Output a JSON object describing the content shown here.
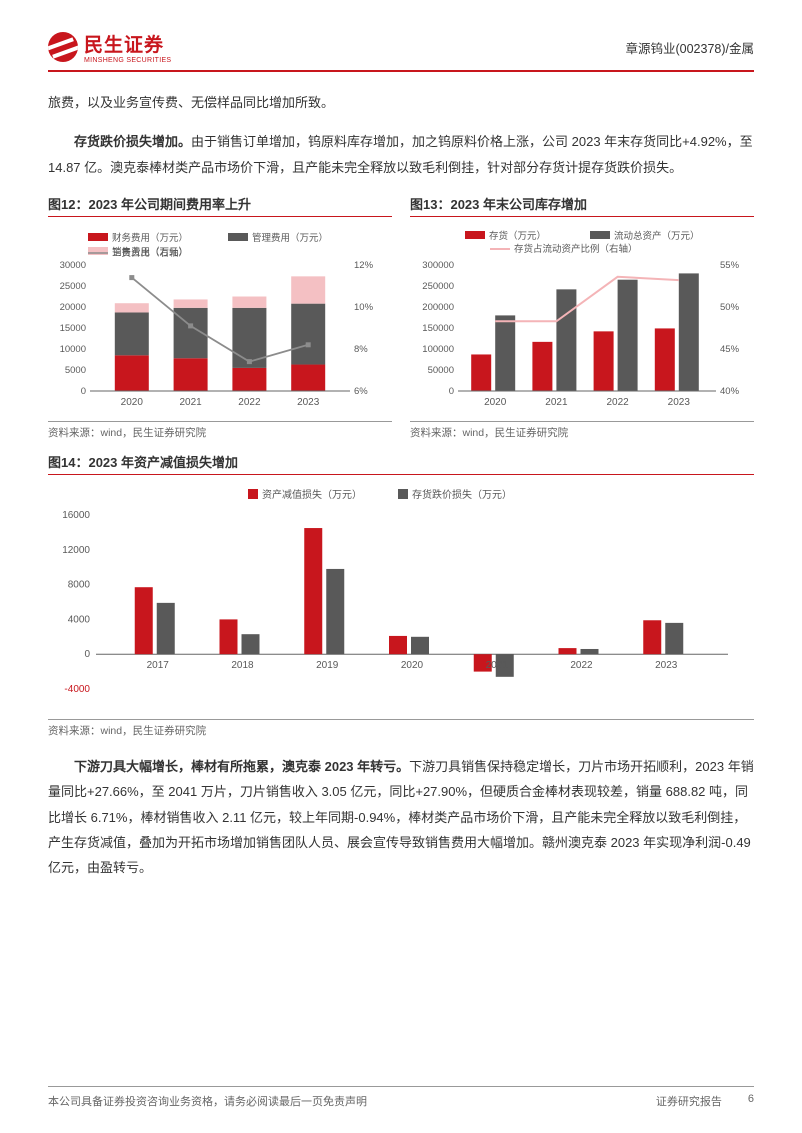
{
  "header": {
    "company_cn": "民生证券",
    "company_en": "MINSHENG SECURITIES",
    "ticker": "章源钨业(002378)/金属"
  },
  "para1": "旅费，以及业务宣传费、无偿样品同比增加所致。",
  "para2_bold": "存货跌价损失增加。",
  "para2_rest": "由于销售订单增加，钨原料库存增加，加之钨原料价格上涨，公司 2023 年末存货同比+4.92%，至 14.87 亿。澳克泰棒材类产品市场价下滑，且产能未完全释放以致毛利倒挂，针对部分存货计提存货跌价损失。",
  "para3_bold": "下游刀具大幅增长，棒材有所拖累，澳克泰 2023 年转亏。",
  "para3_rest": "下游刀具销售保持稳定增长，刀片市场开拓顺利，2023 年销量同比+27.66%，至 2041 万片，刀片销售收入  3.05 亿元，同比+27.90%，但硬质合金棒材表现较差，销量 688.82 吨，同比增长 6.71%，棒材销售收入 2.11 亿元，较上年同期-0.94%，棒材类产品市场价下滑，且产能未完全释放以致毛利倒挂，产生存货减值，叠加为开拓市场增加销售团队人员、展会宣传导致销售费用大幅增加。赣州澳克泰 2023 年实现净利润-0.49 亿元，由盈转亏。",
  "chart12": {
    "title": "图12：2023 年公司期间费用率上升",
    "legend": [
      "财务费用（万元）",
      "管理费用（万元）",
      "销售费用（万元）",
      "三费占比（右轴）"
    ],
    "categories": [
      "2020",
      "2021",
      "2022",
      "2023"
    ],
    "finance": [
      8500,
      7800,
      5500,
      6300
    ],
    "mgmt": [
      10200,
      12000,
      14300,
      14500
    ],
    "sales": [
      2200,
      2000,
      2700,
      6500
    ],
    "ratio_pct": [
      11.4,
      9.1,
      7.4,
      8.2
    ],
    "y1_ticks": [
      0,
      5000,
      10000,
      15000,
      20000,
      25000,
      30000
    ],
    "y2_ticks": [
      6,
      8,
      10,
      12
    ],
    "colors": {
      "finance": "#c8161d",
      "mgmt": "#595959",
      "sales": "#f4c0c3",
      "line": "#8c8c8c",
      "axis": "#666",
      "text": "#595959"
    },
    "source": "资料来源：wind，民生证券研究院"
  },
  "chart13": {
    "title": "图13：2023 年末公司库存增加",
    "legend": [
      "存货（万元）",
      "流动总资产（万元）",
      "存货占流动资产比例（右轴）"
    ],
    "categories": [
      "2020",
      "2021",
      "2022",
      "2023"
    ],
    "inventory": [
      87000,
      117000,
      142000,
      149000
    ],
    "current_assets": [
      180000,
      242000,
      265000,
      280000
    ],
    "ratio_pct": [
      48.3,
      48.3,
      53.6,
      53.2
    ],
    "y1_ticks": [
      0,
      50000,
      100000,
      150000,
      200000,
      250000,
      300000
    ],
    "y2_ticks": [
      40,
      45,
      50,
      55
    ],
    "colors": {
      "inventory": "#c8161d",
      "assets": "#595959",
      "line": "#f4b4b7",
      "axis": "#666",
      "text": "#595959"
    },
    "source": "资料来源：wind，民生证券研究院"
  },
  "chart14": {
    "title": "图14：2023 年资产减值损失增加",
    "legend": [
      "资产减值损失（万元）",
      "存货跌价损失（万元）"
    ],
    "categories": [
      "2017",
      "2018",
      "2019",
      "2020",
      "2021",
      "2022",
      "2023"
    ],
    "impair": [
      7700,
      4000,
      14500,
      2100,
      -2000,
      700,
      3900
    ],
    "invloss": [
      5900,
      2300,
      9800,
      2000,
      -2600,
      600,
      3600
    ],
    "y_ticks": [
      -4000,
      0,
      4000,
      8000,
      12000,
      16000
    ],
    "colors": {
      "impair": "#c8161d",
      "invloss": "#595959",
      "axis": "#666",
      "text": "#595959",
      "neg_label": "#c8161d"
    },
    "source": "资料来源：wind，民生证券研究院"
  },
  "footer": {
    "left": "本公司具备证券投资咨询业务资格，请务必阅读最后一页免责声明",
    "right1": "证券研究报告",
    "right2": "6"
  }
}
